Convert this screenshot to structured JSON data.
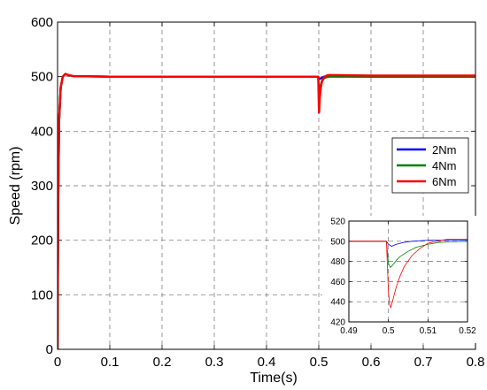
{
  "chart_data": [
    {
      "type": "line",
      "xlabel": "Time(s)",
      "ylabel": "Speed (rpm)",
      "xlim": [
        0,
        0.8
      ],
      "ylim": [
        0,
        600
      ],
      "x_ticks": [
        "0",
        "0.1",
        "0.2",
        "0.3",
        "0.4",
        "0.5",
        "0.6",
        "0.7",
        "0.8"
      ],
      "y_ticks": [
        "0",
        "100",
        "200",
        "300",
        "400",
        "500",
        "600"
      ],
      "grid": true,
      "legend_position": "right",
      "series": [
        {
          "name": "2Nm",
          "color": "#0000ff",
          "points": [
            [
              0,
              0
            ],
            [
              0.001,
              250
            ],
            [
              0.003,
              420
            ],
            [
              0.006,
              480
            ],
            [
              0.01,
              500
            ],
            [
              0.015,
              505
            ],
            [
              0.02,
              503
            ],
            [
              0.03,
              501
            ],
            [
              0.1,
              500
            ],
            [
              0.2,
              500
            ],
            [
              0.3,
              500
            ],
            [
              0.4,
              500
            ],
            [
              0.499,
              500
            ],
            [
              0.5,
              497
            ],
            [
              0.502,
              496
            ],
            [
              0.506,
              498
            ],
            [
              0.51,
              500
            ],
            [
              0.52,
              501
            ],
            [
              0.6,
              500
            ],
            [
              0.7,
              500
            ],
            [
              0.8,
              500
            ]
          ]
        },
        {
          "name": "4Nm",
          "color": "#008000",
          "points": [
            [
              0,
              0
            ],
            [
              0.001,
              250
            ],
            [
              0.003,
              420
            ],
            [
              0.006,
              480
            ],
            [
              0.01,
              500
            ],
            [
              0.015,
              505
            ],
            [
              0.02,
              503
            ],
            [
              0.03,
              501
            ],
            [
              0.1,
              500
            ],
            [
              0.2,
              500
            ],
            [
              0.3,
              500
            ],
            [
              0.4,
              500
            ],
            [
              0.499,
              500
            ],
            [
              0.5,
              476
            ],
            [
              0.501,
              474
            ],
            [
              0.503,
              482
            ],
            [
              0.506,
              492
            ],
            [
              0.51,
              497
            ],
            [
              0.515,
              499
            ],
            [
              0.52,
              500
            ],
            [
              0.6,
              500
            ],
            [
              0.7,
              500
            ],
            [
              0.8,
              500
            ]
          ]
        },
        {
          "name": "6Nm",
          "color": "#ff0000",
          "points": [
            [
              0,
              0
            ],
            [
              0.001,
              250
            ],
            [
              0.003,
              420
            ],
            [
              0.006,
              480
            ],
            [
              0.01,
              500
            ],
            [
              0.015,
              505
            ],
            [
              0.02,
              503
            ],
            [
              0.03,
              501
            ],
            [
              0.1,
              500
            ],
            [
              0.2,
              500
            ],
            [
              0.3,
              500
            ],
            [
              0.4,
              500
            ],
            [
              0.499,
              500
            ],
            [
              0.5,
              450
            ],
            [
              0.5005,
              434
            ],
            [
              0.501,
              440
            ],
            [
              0.502,
              462
            ],
            [
              0.504,
              480
            ],
            [
              0.506,
              490
            ],
            [
              0.508,
              495
            ],
            [
              0.51,
              499
            ],
            [
              0.515,
              502
            ],
            [
              0.52,
              503
            ],
            [
              0.6,
              502
            ],
            [
              0.7,
              502
            ],
            [
              0.8,
              502
            ]
          ]
        }
      ]
    },
    {
      "type": "line",
      "role": "inset",
      "xlim": [
        0.49,
        0.52
      ],
      "ylim": [
        420,
        520
      ],
      "x_ticks": [
        "0.49",
        "0.5",
        "0.51",
        "0.52"
      ],
      "y_ticks": [
        "420",
        "440",
        "460",
        "480",
        "500",
        "520"
      ],
      "grid": true,
      "series": [
        {
          "name": "2Nm",
          "color": "#0000ff",
          "points": [
            [
              0.49,
              500
            ],
            [
              0.4995,
              500
            ],
            [
              0.5,
              497
            ],
            [
              0.5008,
              495
            ],
            [
              0.502,
              497
            ],
            [
              0.504,
              499
            ],
            [
              0.506,
              500
            ],
            [
              0.51,
              501
            ],
            [
              0.52,
              501
            ]
          ]
        },
        {
          "name": "4Nm",
          "color": "#008000",
          "points": [
            [
              0.49,
              500
            ],
            [
              0.4995,
              500
            ],
            [
              0.5,
              478
            ],
            [
              0.5005,
              474
            ],
            [
              0.501,
              476
            ],
            [
              0.502,
              481
            ],
            [
              0.503,
              485
            ],
            [
              0.505,
              490
            ],
            [
              0.507,
              494
            ],
            [
              0.51,
              497
            ],
            [
              0.513,
              499
            ],
            [
              0.52,
              500
            ]
          ]
        },
        {
          "name": "6Nm",
          "color": "#ff0000",
          "points": [
            [
              0.49,
              500
            ],
            [
              0.4995,
              500
            ],
            [
              0.5,
              450
            ],
            [
              0.5003,
              438
            ],
            [
              0.5006,
              434
            ],
            [
              0.501,
              440
            ],
            [
              0.502,
              455
            ],
            [
              0.503,
              466
            ],
            [
              0.504,
              475
            ],
            [
              0.506,
              486
            ],
            [
              0.508,
              493
            ],
            [
              0.51,
              498
            ],
            [
              0.512,
              500
            ],
            [
              0.515,
              502
            ],
            [
              0.52,
              502
            ]
          ]
        }
      ]
    }
  ]
}
